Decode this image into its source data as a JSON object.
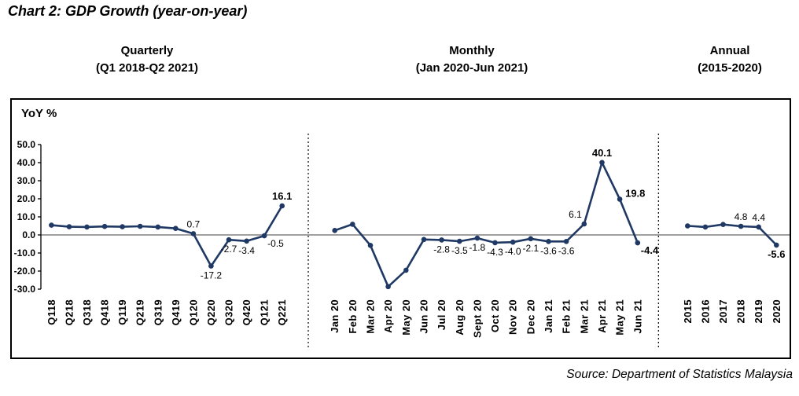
{
  "title": "Chart 2: GDP Growth (year-on-year)",
  "source": "Source: Department of Statistics Malaysia",
  "y_axis_label": "YoY %",
  "y_ticks": [
    "50.0",
    "40.0",
    "30.0",
    "20.0",
    "10.0",
    "0.0",
    "-10.0",
    "-20.0",
    "-30.0"
  ],
  "colors": {
    "line": "#1f3864",
    "zero_line": "#808080",
    "axis": "#000000",
    "separator": "#000000",
    "text": "#000000",
    "border": "#000000",
    "background": "#ffffff"
  },
  "chart_data": [
    {
      "type": "line",
      "title": "Quarterly",
      "subtitle": "(Q1 2018-Q2 2021)",
      "ylabel": "YoY %",
      "ylim": [
        -30,
        50
      ],
      "ytick_step": 10,
      "grid": "zero-line-only",
      "categories": [
        "Q118",
        "Q218",
        "Q318",
        "Q418",
        "Q119",
        "Q219",
        "Q319",
        "Q419",
        "Q120",
        "Q220",
        "Q320",
        "Q420",
        "Q121",
        "Q221"
      ],
      "values": [
        5.4,
        4.5,
        4.4,
        4.7,
        4.5,
        4.8,
        4.4,
        3.6,
        0.7,
        -17.2,
        -2.7,
        -3.4,
        -0.5,
        16.1
      ],
      "point_labels": [
        null,
        null,
        null,
        null,
        null,
        null,
        null,
        null,
        {
          "text": "0.7",
          "pos": "above",
          "bold": false
        },
        {
          "text": "-17.2",
          "pos": "below",
          "bold": false
        },
        {
          "text": "-2.7",
          "pos": "below",
          "bold": false
        },
        {
          "text": "-3.4",
          "pos": "below",
          "bold": false
        },
        {
          "text": "-0.5",
          "pos": "below-right",
          "bold": false
        },
        {
          "text": "16.1",
          "pos": "above",
          "bold": true
        }
      ]
    },
    {
      "type": "line",
      "title": "Monthly",
      "subtitle": "(Jan 2020-Jun 2021)",
      "ylabel": "YoY %",
      "ylim": [
        -30,
        50
      ],
      "ytick_step": 10,
      "grid": "zero-line-only",
      "categories": [
        "Jan 20",
        "Feb 20",
        "Mar 20",
        "Apr 20",
        "May 20",
        "Jun 20",
        "Jul 20",
        "Aug 20",
        "Sept 20",
        "Oct 20",
        "Nov 20",
        "Dec 20",
        "Jan 21",
        "Feb 21",
        "Mar 21",
        "Apr 21",
        "May 21",
        "Jun 21"
      ],
      "values": [
        2.5,
        5.9,
        -5.8,
        -28.6,
        -19.5,
        -2.5,
        -2.8,
        -3.5,
        -1.8,
        -4.3,
        -4.0,
        -2.1,
        -3.6,
        -3.6,
        6.1,
        40.1,
        19.8,
        -4.4
      ],
      "point_labels": [
        null,
        null,
        null,
        null,
        null,
        null,
        {
          "text": "-2.8",
          "pos": "below",
          "bold": false
        },
        {
          "text": "-3.5",
          "pos": "below",
          "bold": false
        },
        {
          "text": "-1.8",
          "pos": "below",
          "bold": false
        },
        {
          "text": "-4.3",
          "pos": "below",
          "bold": false
        },
        {
          "text": "-4.0",
          "pos": "below",
          "bold": false
        },
        {
          "text": "-2.1",
          "pos": "below",
          "bold": false
        },
        {
          "text": "-3.6",
          "pos": "below",
          "bold": false
        },
        {
          "text": "-3.6",
          "pos": "below",
          "bold": false
        },
        {
          "text": "6.1",
          "pos": "above-left",
          "bold": false
        },
        {
          "text": "40.1",
          "pos": "above",
          "bold": true
        },
        {
          "text": "19.8",
          "pos": "above-right",
          "bold": true
        },
        {
          "text": "-4.4",
          "pos": "below-right",
          "bold": true
        }
      ]
    },
    {
      "type": "line",
      "title": "Annual",
      "subtitle": "(2015-2020)",
      "ylabel": "YoY %",
      "ylim": [
        -30,
        50
      ],
      "ytick_step": 10,
      "grid": "zero-line-only",
      "categories": [
        "2015",
        "2016",
        "2017",
        "2018",
        "2019",
        "2020"
      ],
      "values": [
        5.0,
        4.4,
        5.8,
        4.8,
        4.4,
        -5.6
      ],
      "point_labels": [
        null,
        null,
        null,
        {
          "text": "4.8",
          "pos": "above",
          "bold": false
        },
        {
          "text": "4.4",
          "pos": "above",
          "bold": false
        },
        {
          "text": "-5.6",
          "pos": "below",
          "bold": true
        }
      ]
    }
  ]
}
